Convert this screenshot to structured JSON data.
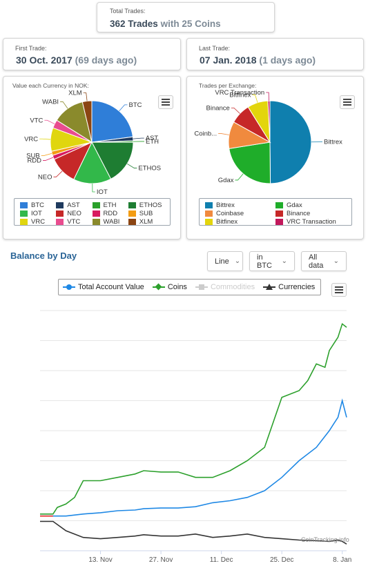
{
  "summary": {
    "total_trades": {
      "label": "Total Trades:",
      "value": "362 Trades",
      "suffix": "with 25 Coins"
    },
    "first_trade": {
      "label": "First Trade:",
      "value": "30 Oct. 2017",
      "suffix": "(69 days ago)"
    },
    "last_trade": {
      "label": "Last Trade:",
      "value": "07 Jan. 2018",
      "suffix": "(1 days ago)"
    }
  },
  "currency_card_title": "Value each Currency in NOK:",
  "exchange_card_title": "Trades per Exchange:",
  "balance": {
    "title": "Balance by Day",
    "dropdowns": {
      "type": "Line",
      "unit": "in BTC",
      "range": "All data"
    },
    "watermark": "CoinTracking.info"
  },
  "colors": {
    "section_title": "#2a6496",
    "total_account": "#1e88e5",
    "coins": "#2ca02c",
    "currencies": "#333333",
    "commodities": "#cccccc",
    "early_total": "#e53935"
  },
  "chart_data": [
    {
      "type": "pie",
      "title": "Value each Currency in NOK:",
      "categories": [
        "BTC",
        "AST",
        "ETH",
        "ETHOS",
        "IOT",
        "NEO",
        "RDD",
        "SUB",
        "VRC",
        "VTC",
        "WABI",
        "XLM"
      ],
      "values": [
        22.5,
        1.5,
        0.6,
        17.0,
        14.5,
        10.8,
        1.6,
        1.6,
        9.0,
        3.2,
        12.2,
        3.6
      ],
      "colors": [
        "#2f7ed8",
        "#1f3a5e",
        "#2aa02a",
        "#1e7d32",
        "#32b84a",
        "#c62828",
        "#d81b60",
        "#f39c12",
        "#e0d60f",
        "#e94c8f",
        "#8a8a2c",
        "#8b4513"
      ]
    },
    {
      "type": "pie",
      "title": "Trades per Exchange:",
      "categories": [
        "Bittrex",
        "Gdax",
        "Coinbase",
        "Binance",
        "Bitfinex",
        "VRC Transaction"
      ],
      "labels": [
        "Bittrex",
        "Gdax",
        "Coinb...",
        "Binance",
        "Bitfinex",
        "VRC Transaction"
      ],
      "values": [
        49.5,
        22.5,
        10.5,
        8.0,
        8.0,
        0.8
      ],
      "colors": [
        "#0f7fae",
        "#1fad2a",
        "#f08a3e",
        "#c62828",
        "#e3d50c",
        "#c2185b"
      ]
    },
    {
      "type": "line",
      "title": "Balance by Day",
      "x_ticks": [
        "13. Nov",
        "27. Nov",
        "11. Dec",
        "25. Dec",
        "8. Jan"
      ],
      "x_start": "2017-10-30",
      "y_gridlines": 8,
      "y_tick_labels": [],
      "legend": [
        "Total Account Value",
        "Coins",
        "Commodities",
        "Currencies"
      ],
      "series": [
        {
          "name": "Total Account Value",
          "x_days": [
            0,
            3,
            6,
            10,
            14,
            18,
            22,
            24,
            28,
            32,
            36,
            40,
            44,
            48,
            52,
            56,
            60,
            64,
            67,
            68,
            69,
            70,
            71
          ],
          "values": [
            0.52,
            0.52,
            0.52,
            0.55,
            0.57,
            0.6,
            0.61,
            0.63,
            0.64,
            0.64,
            0.66,
            0.72,
            0.75,
            0.8,
            0.9,
            1.1,
            1.35,
            1.55,
            1.8,
            1.9,
            2.0,
            2.25,
            2.0
          ]
        },
        {
          "name": "Coins",
          "x_days": [
            0,
            1,
            2,
            3,
            4,
            6,
            8,
            10,
            14,
            18,
            22,
            24,
            28,
            32,
            36,
            40,
            44,
            48,
            52,
            56,
            60,
            62,
            64,
            66,
            67,
            68,
            69,
            70,
            71
          ],
          "values": [
            0.55,
            0.55,
            0.55,
            0.55,
            0.65,
            0.7,
            0.8,
            1.05,
            1.05,
            1.1,
            1.15,
            1.2,
            1.18,
            1.18,
            1.1,
            1.1,
            1.2,
            1.35,
            1.55,
            2.3,
            2.4,
            2.55,
            2.8,
            2.75,
            3.0,
            3.1,
            3.2,
            3.4,
            3.35
          ]
        },
        {
          "name": "Currencies",
          "x_days": [
            0,
            3,
            6,
            10,
            14,
            18,
            22,
            24,
            28,
            32,
            36,
            40,
            44,
            48,
            52,
            56,
            60,
            64,
            67,
            68,
            69,
            70,
            71
          ],
          "values": [
            0.44,
            0.44,
            0.3,
            0.2,
            0.18,
            0.2,
            0.22,
            0.24,
            0.22,
            0.22,
            0.25,
            0.2,
            0.22,
            0.25,
            0.2,
            0.18,
            0.16,
            0.15,
            0.14,
            0.15,
            0.16,
            0.14,
            0.1
          ]
        }
      ]
    }
  ]
}
